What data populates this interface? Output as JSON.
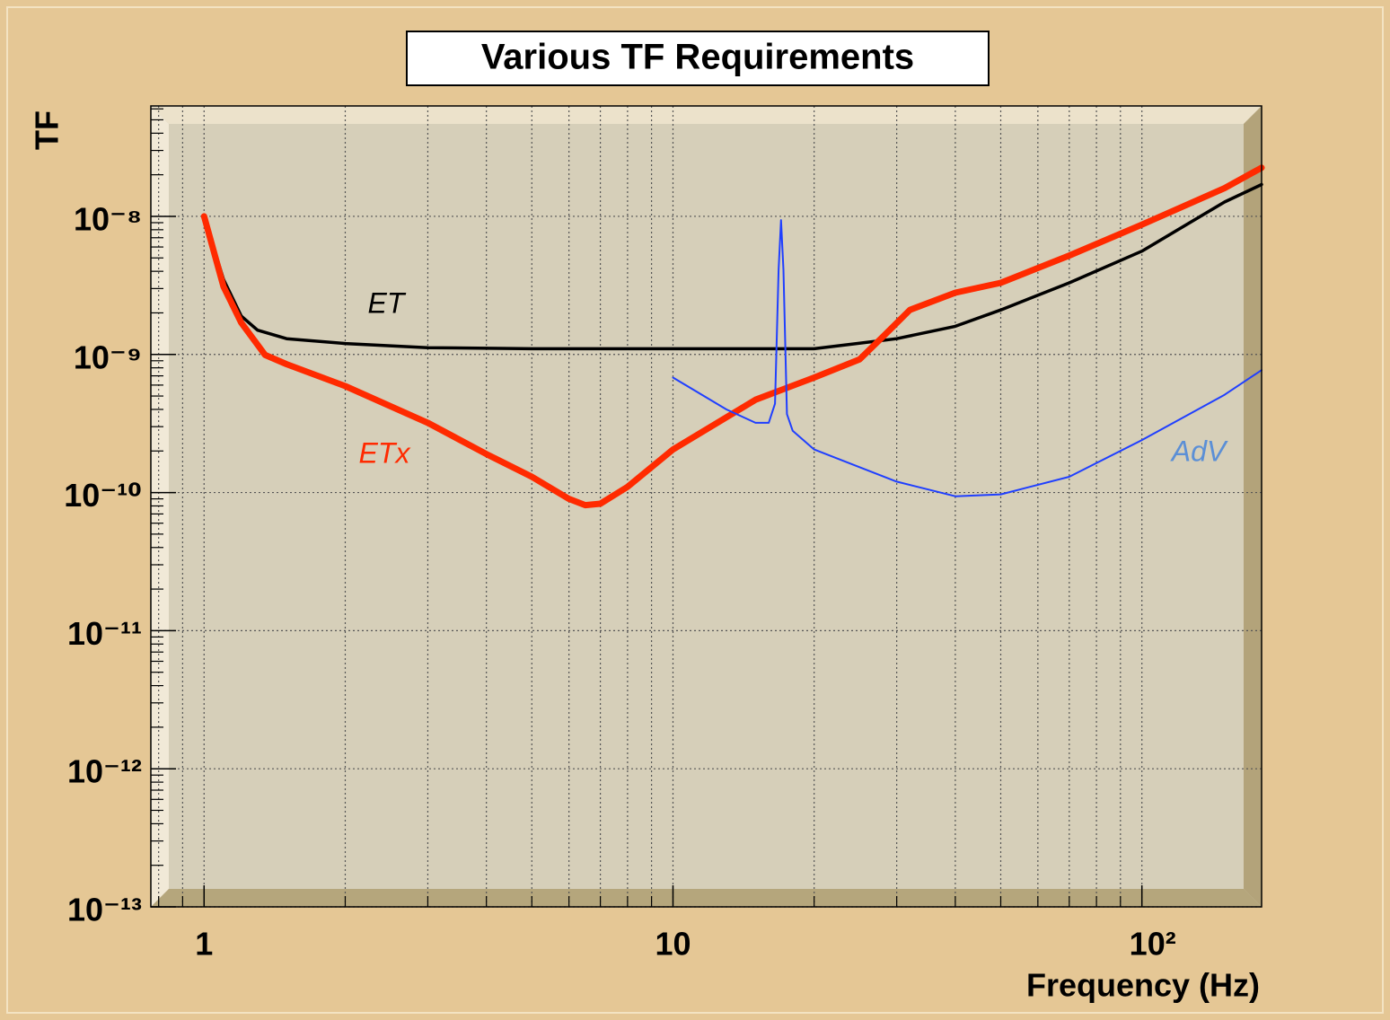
{
  "chart_data": {
    "type": "line",
    "title": "Various TF Requirements",
    "x_label": "Frequency (Hz)",
    "y_label": "TF",
    "xlog": true,
    "ylog": true,
    "grid": true,
    "xlim": [
      0.77,
      180
    ],
    "ylim": [
      1e-13,
      6.3e-08
    ],
    "xticks": [
      1,
      10,
      {
        "value": 100,
        "label": "10²"
      }
    ],
    "yticks": [
      {
        "value": 1e-13,
        "label": "10⁻¹³"
      },
      {
        "value": 1e-12,
        "label": "10⁻¹²"
      },
      {
        "value": 1e-11,
        "label": "10⁻¹¹"
      },
      {
        "value": 1e-10,
        "label": "10⁻¹⁰"
      },
      {
        "value": 1e-09,
        "label": "10⁻⁹"
      },
      {
        "value": 1e-08,
        "label": "10⁻⁸"
      }
    ],
    "series": [
      {
        "name": "ET",
        "color": "#000000",
        "x": [
          1,
          1.1,
          1.2,
          1.3,
          1.5,
          2,
          3,
          5,
          10,
          20,
          30,
          40,
          50,
          70,
          100,
          150,
          180
        ],
        "values": [
          1e-08,
          3.5e-09,
          1.9e-09,
          1.5e-09,
          1.3e-09,
          1.2e-09,
          1.12e-09,
          1.1e-09,
          1.1e-09,
          1.1e-09,
          1.3e-09,
          1.6e-09,
          2.1e-09,
          3.3e-09,
          5.6e-09,
          1.27e-08,
          1.7e-08
        ]
      },
      {
        "name": "ETx",
        "color": "#ff2a00",
        "x": [
          1,
          1.1,
          1.2,
          1.35,
          1.5,
          2,
          3,
          4,
          5,
          6,
          6.5,
          7,
          8,
          10,
          15,
          20,
          25,
          28,
          32,
          40,
          50,
          70,
          100,
          150,
          180
        ],
        "values": [
          1e-08,
          3.1e-09,
          1.7e-09,
          9.9e-10,
          8.5e-10,
          5.9e-10,
          3.2e-10,
          1.9e-10,
          1.3e-10,
          9e-11,
          8.1e-11,
          8.3e-11,
          1.1e-10,
          2.05e-10,
          4.7e-10,
          6.8e-10,
          9.2e-10,
          1.34e-09,
          2.1e-09,
          2.8e-09,
          3.3e-09,
          5.2e-09,
          8.7e-09,
          1.6e-08,
          2.25e-08
        ]
      },
      {
        "name": "AdV",
        "color": "#1f3fff",
        "x": [
          10,
          13,
          15,
          16,
          16.5,
          16.8,
          17,
          17.2,
          17.5,
          18,
          20,
          30,
          40,
          50,
          70,
          100,
          150,
          180
        ],
        "values": [
          6.8e-10,
          4e-10,
          3.2e-10,
          3.2e-10,
          4.4e-10,
          4.1e-09,
          9.4e-09,
          4.1e-09,
          3.7e-10,
          2.8e-10,
          2.05e-10,
          1.2e-10,
          9.4e-11,
          9.7e-11,
          1.3e-10,
          2.4e-10,
          5.1e-10,
          7.7e-10
        ]
      }
    ],
    "annotations": [
      {
        "text": "ET",
        "color": "#000000"
      },
      {
        "text": "ETx",
        "color": "#ff2a00"
      },
      {
        "text": "AdV",
        "color": "#5b8fd6"
      }
    ]
  }
}
